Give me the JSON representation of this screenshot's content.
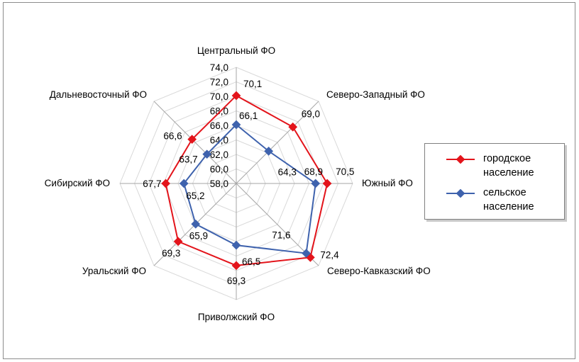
{
  "chart_data": {
    "type": "radar",
    "categories": [
      "Центральный ФО",
      "Северо-Западный ФО",
      "Южный ФО",
      "Северо-Кавказский ФО",
      "Приволжский ФО",
      "Уральский ФО",
      "Сибирский ФО",
      "Дальневосточный ФО"
    ],
    "radial_ticks": [
      "58,0",
      "60,0",
      "62,0",
      "64,0",
      "66,0",
      "68,0",
      "70,0",
      "72,0",
      "74,0"
    ],
    "rmin": 58,
    "rmax": 74,
    "series": [
      {
        "name": "городское население",
        "color": "#e3141b",
        "values": [
          70.1,
          69.0,
          70.5,
          72.4,
          69.3,
          69.3,
          67.7,
          66.6
        ],
        "labels": [
          "70,1",
          "69,0",
          "70,5",
          "72,4",
          "69,3",
          "69,3",
          "67,7",
          "66,6"
        ]
      },
      {
        "name": "сельское население",
        "color": "#3e62ad",
        "values": [
          66.1,
          64.3,
          68.9,
          71.6,
          66.5,
          65.9,
          65.2,
          63.7
        ],
        "labels": [
          "66,1",
          "64,3",
          "68,9",
          "71,6",
          "66,5",
          "65,9",
          "65,2",
          "63,7"
        ]
      }
    ]
  },
  "legend": {
    "urban_line1": "городское",
    "urban_line2": "население",
    "rural_line1": "сельское",
    "rural_line2": "население"
  }
}
